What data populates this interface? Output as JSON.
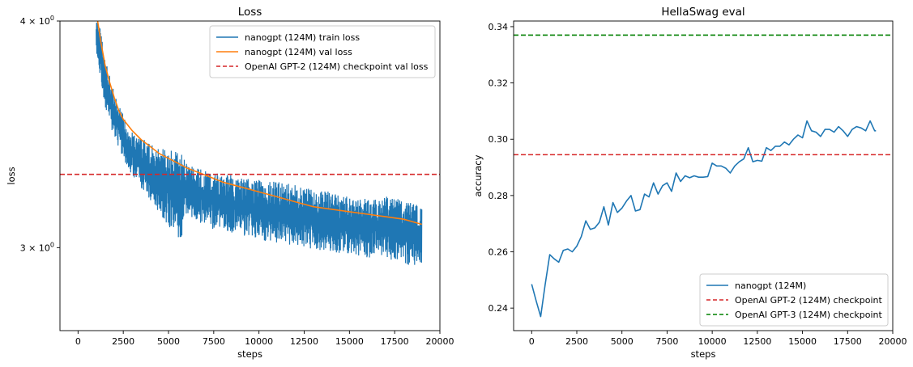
{
  "chart_data": [
    {
      "type": "line",
      "title": "Loss",
      "xlabel": "steps",
      "ylabel": "loss",
      "yscale": "log",
      "xlim": [
        -1000,
        20000
      ],
      "ylim": [
        2.7,
        4.0
      ],
      "xticks": [
        0,
        2500,
        5000,
        7500,
        10000,
        12500,
        15000,
        17500,
        20000
      ],
      "xtick_labels": [
        "0",
        "2500",
        "5000",
        "7500",
        "10000",
        "12500",
        "15000",
        "17500",
        "20000"
      ],
      "yticks": [
        {
          "value": 4.0,
          "base": "4 × 10",
          "exp": "0"
        },
        {
          "value": 3.0,
          "base": "3 × 10",
          "exp": "0"
        }
      ],
      "legend_position": "top-right",
      "series": [
        {
          "name": "nanogpt (124M) train loss",
          "color": "#1f77b4",
          "style": "noisy-band",
          "x": [
            1000,
            1250,
            1500,
            2000,
            2500,
            3000,
            4000,
            5000,
            5750,
            5850,
            6000,
            7500,
            10000,
            12500,
            15000,
            17500,
            19000
          ],
          "hi": [
            4.05,
            3.95,
            3.82,
            3.65,
            3.55,
            3.48,
            3.42,
            3.4,
            3.38,
            3.36,
            3.34,
            3.3,
            3.27,
            3.25,
            3.2,
            3.2,
            3.16
          ],
          "lo": [
            3.8,
            3.7,
            3.58,
            3.45,
            3.36,
            3.28,
            3.18,
            3.07,
            3.01,
            3.1,
            3.12,
            3.07,
            3.03,
            3.0,
            2.97,
            2.95,
            2.92
          ]
        },
        {
          "name": "nanogpt (124M) val loss",
          "color": "#ff7f0e",
          "x": [
            1000,
            1250,
            1500,
            1750,
            2000,
            2250,
            2500,
            3000,
            3500,
            4000,
            4500,
            5000,
            5500,
            6000,
            7000,
            8000,
            9000,
            10000,
            11000,
            12000,
            13000,
            14000,
            15000,
            16000,
            17000,
            18000,
            19000
          ],
          "y": [
            4.05,
            3.9,
            3.78,
            3.7,
            3.63,
            3.57,
            3.53,
            3.48,
            3.44,
            3.41,
            3.38,
            3.36,
            3.34,
            3.32,
            3.29,
            3.26,
            3.24,
            3.22,
            3.2,
            3.18,
            3.16,
            3.15,
            3.14,
            3.13,
            3.12,
            3.11,
            3.09
          ]
        },
        {
          "name": "OpenAI GPT-2 (124M) checkpoint val loss",
          "color": "#d62728",
          "style": "dashed-hline",
          "y": 3.2924
        }
      ]
    },
    {
      "type": "line",
      "title": "HellaSwag eval",
      "xlabel": "steps",
      "ylabel": "accuracy",
      "xlim": [
        -1000,
        20000
      ],
      "ylim": [
        0.232,
        0.342
      ],
      "xticks": [
        0,
        2500,
        5000,
        7500,
        10000,
        12500,
        15000,
        17500,
        20000
      ],
      "xtick_labels": [
        "0",
        "2500",
        "5000",
        "7500",
        "10000",
        "12500",
        "15000",
        "17500",
        "20000"
      ],
      "yticks": [
        0.24,
        0.26,
        0.28,
        0.3,
        0.32,
        0.34
      ],
      "ytick_labels": [
        "0.24",
        "0.26",
        "0.28",
        "0.30",
        "0.32",
        "0.34"
      ],
      "legend_position": "bottom-right",
      "series": [
        {
          "name": "nanogpt (124M)",
          "color": "#1f77b4",
          "x": [
            0,
            250,
            500,
            750,
            1000,
            1250,
            1500,
            1750,
            2000,
            2250,
            2500,
            2750,
            3000,
            3250,
            3500,
            3750,
            4000,
            4250,
            4500,
            4750,
            5000,
            5250,
            5500,
            5750,
            6000,
            6250,
            6500,
            6750,
            7000,
            7250,
            7500,
            7750,
            8000,
            8250,
            8500,
            8750,
            9000,
            9250,
            9500,
            9750,
            10000,
            10250,
            10500,
            10750,
            11000,
            11250,
            11500,
            11750,
            12000,
            12250,
            12500,
            12750,
            13000,
            13250,
            13500,
            13750,
            14000,
            14250,
            14500,
            14750,
            15000,
            15250,
            15500,
            15750,
            16000,
            16250,
            16500,
            16750,
            17000,
            17250,
            17500,
            17750,
            18000,
            18250,
            18500,
            18750,
            19000,
            19073
          ],
          "y": [
            0.2485,
            0.2425,
            0.237,
            0.2485,
            0.259,
            0.2575,
            0.2563,
            0.2605,
            0.261,
            0.26,
            0.262,
            0.2655,
            0.271,
            0.268,
            0.2685,
            0.2705,
            0.276,
            0.2695,
            0.2775,
            0.274,
            0.2755,
            0.278,
            0.28,
            0.2745,
            0.275,
            0.2805,
            0.2795,
            0.2845,
            0.2805,
            0.2835,
            0.2845,
            0.2815,
            0.288,
            0.285,
            0.287,
            0.2863,
            0.287,
            0.2865,
            0.2865,
            0.2867,
            0.2915,
            0.2905,
            0.2905,
            0.2897,
            0.288,
            0.2905,
            0.292,
            0.293,
            0.297,
            0.292,
            0.2925,
            0.2922,
            0.297,
            0.296,
            0.2975,
            0.2975,
            0.299,
            0.298,
            0.3,
            0.3015,
            0.3005,
            0.3065,
            0.303,
            0.3025,
            0.301,
            0.3035,
            0.3035,
            0.3025,
            0.3045,
            0.303,
            0.301,
            0.3035,
            0.3045,
            0.304,
            0.303,
            0.3065,
            0.303,
            0.303
          ]
        },
        {
          "name": "OpenAI GPT-2 (124M) checkpoint",
          "color": "#d62728",
          "style": "dashed-hline",
          "y": 0.2945
        },
        {
          "name": "OpenAI GPT-3 (124M) checkpoint",
          "color": "#008000",
          "style": "dashed-hline",
          "y": 0.337
        }
      ]
    }
  ]
}
